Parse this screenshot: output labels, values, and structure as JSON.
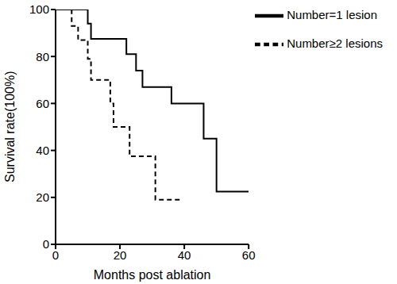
{
  "chart_data": {
    "type": "line",
    "x_label": "Months post ablation",
    "y_label": "Survival rate(100%)",
    "x": [
      0,
      5,
      7,
      10,
      11,
      17,
      18,
      22,
      23,
      25,
      27,
      31,
      36,
      39,
      46,
      50,
      60
    ],
    "series": [
      {
        "name": "Number=1 lesion",
        "color": "#000000",
        "line_style": "solid",
        "values": [
          100,
          100,
          100,
          94,
          87.5,
          87.5,
          87.5,
          81,
          81,
          74,
          67,
          67,
          60,
          60,
          45,
          22.5,
          22.5
        ]
      },
      {
        "name": "Number≥2 lesions",
        "color": "#000000",
        "line_style": "dashed",
        "values": [
          100,
          93,
          87,
          79,
          70,
          60,
          50,
          50,
          37.5,
          37.5,
          37.5,
          19,
          19,
          19,
          null,
          null,
          null
        ]
      }
    ],
    "xlim": [
      0,
      60
    ],
    "xticks": [
      0,
      20,
      40,
      60
    ],
    "ylim": [
      0,
      100
    ],
    "yticks": [
      0,
      20,
      40,
      60,
      80,
      100
    ],
    "grid": false,
    "legend": "upper right"
  }
}
